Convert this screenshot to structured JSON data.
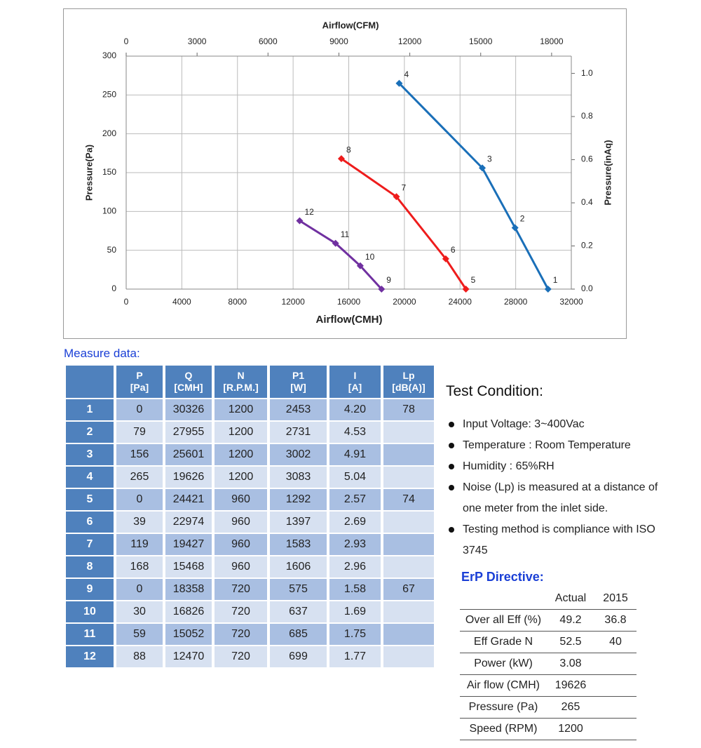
{
  "chart_data": {
    "type": "line",
    "xlabel": "Airflow(CMH)",
    "x2label": "Airflow(CFM)",
    "ylabel": "Pressure(Pa)",
    "y2label": "Pressure(inAq)",
    "xlim": [
      0,
      32000
    ],
    "xticks": [
      0,
      4000,
      8000,
      12000,
      16000,
      20000,
      24000,
      28000,
      32000
    ],
    "x2lim": [
      0,
      18834
    ],
    "x2ticks": [
      0,
      3000,
      6000,
      9000,
      12000,
      15000,
      18000
    ],
    "ylim": [
      0,
      300
    ],
    "yticks": [
      0,
      50,
      100,
      150,
      200,
      250,
      300
    ],
    "y2lim": [
      0,
      1.08
    ],
    "y2ticks": [
      {
        "value": 0,
        "label": "0.0"
      },
      {
        "value": 0.2,
        "label": "0.2"
      },
      {
        "value": 0.4,
        "label": "0.4"
      },
      {
        "value": 0.6,
        "label": "0.6"
      },
      {
        "value": 0.8,
        "label": "0.8"
      },
      {
        "value": 1.0,
        "label": "1.0"
      }
    ],
    "grid": true,
    "series": [
      {
        "color": "#1a6fb8",
        "x": [
          30326,
          27955,
          25601,
          19626
        ],
        "values": [
          0,
          79,
          156,
          265
        ],
        "point_labels": [
          "1",
          "2",
          "3",
          "4"
        ]
      },
      {
        "color": "#ee1c1c",
        "x": [
          24421,
          22974,
          19427,
          15468
        ],
        "values": [
          0,
          39,
          119,
          168
        ],
        "point_labels": [
          "5",
          "6",
          "7",
          "8"
        ]
      },
      {
        "color": "#7030a0",
        "x": [
          18358,
          16826,
          15052,
          12470
        ],
        "values": [
          0,
          30,
          59,
          88
        ],
        "point_labels": [
          "9",
          "10",
          "11",
          "12"
        ]
      }
    ]
  },
  "measure": {
    "title": "Measure data:",
    "header": [
      [
        "P",
        "[Pa]"
      ],
      [
        "Q",
        "[CMH]"
      ],
      [
        "N",
        "[R.P.M.]"
      ],
      [
        "P1",
        "[W]"
      ],
      [
        "I",
        "[A]"
      ],
      [
        "Lp",
        "[dB(A)]"
      ]
    ],
    "rows": [
      [
        "1",
        "0",
        "30326",
        "1200",
        "2453",
        "4.20",
        "78"
      ],
      [
        "2",
        "79",
        "27955",
        "1200",
        "2731",
        "4.53"
      ],
      [
        "3",
        "156",
        "25601",
        "1200",
        "3002",
        "4.91"
      ],
      [
        "4",
        "265",
        "19626",
        "1200",
        "3083",
        "5.04"
      ],
      [
        "5",
        "0",
        "24421",
        "960",
        "1292",
        "2.57",
        "74"
      ],
      [
        "6",
        "39",
        "22974",
        "960",
        "1397",
        "2.69"
      ],
      [
        "7",
        "119",
        "19427",
        "960",
        "1583",
        "2.93"
      ],
      [
        "8",
        "168",
        "15468",
        "960",
        "1606",
        "2.96"
      ],
      [
        "9",
        "0",
        "18358",
        "720",
        "575",
        "1.58",
        "67"
      ],
      [
        "10",
        "30",
        "16826",
        "720",
        "637",
        "1.69"
      ],
      [
        "11",
        "59",
        "15052",
        "720",
        "685",
        "1.75"
      ],
      [
        "12",
        "88",
        "12470",
        "720",
        "699",
        "1.77"
      ]
    ]
  },
  "test_condition": {
    "title": "Test Condition:",
    "items": [
      "Input Voltage: 3~400Vac",
      "Temperature : Room Temperature",
      "Humidity : 65%RH",
      "Noise (Lp) is measured at a distance of one meter from the inlet side.",
      "Testing method is compliance with ISO 3745"
    ]
  },
  "erp": {
    "title": "ErP Directive:",
    "header": [
      "Actual",
      "2015"
    ],
    "rows": [
      [
        "Over all Eff (%)",
        "49.2",
        "36.8"
      ],
      [
        "Eff Grade N",
        "52.5",
        "40"
      ],
      [
        "Power (kW)",
        "3.08"
      ],
      [
        "Air flow (CMH)",
        "19626"
      ],
      [
        "Pressure (Pa)",
        "265"
      ],
      [
        "Speed (RPM)",
        "1200"
      ]
    ]
  }
}
